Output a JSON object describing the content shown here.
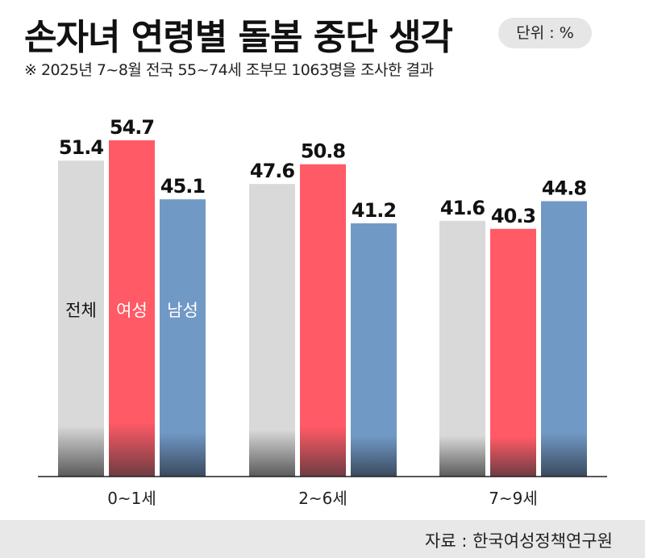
{
  "header": {
    "title": "손자녀 연령별 돌봄 중단 생각",
    "unit": "단위 : %",
    "subtitle": "※ 2025년 7~8월 전국 55~74세 조부모 1063명을 조사한 결과"
  },
  "footer": {
    "source": "자료 : 한국여성정책연구원"
  },
  "colors": {
    "total": "#d9d9d9",
    "female": "#ff5a66",
    "male": "#7199c6"
  },
  "chart_data": {
    "type": "bar",
    "categories": [
      "0~1세",
      "2~6세",
      "7~9세"
    ],
    "series": [
      {
        "name": "전체",
        "values": [
          51.4,
          47.6,
          41.6
        ]
      },
      {
        "name": "여성",
        "values": [
          54.7,
          50.8,
          40.3
        ]
      },
      {
        "name": "남성",
        "values": [
          45.1,
          41.2,
          44.8
        ]
      }
    ],
    "title": "손자녀 연령별 돌봄 중단 생각",
    "xlabel": "",
    "ylabel": "",
    "ylim": [
      0,
      62
    ],
    "grid": false,
    "legend": "inside-first-group"
  }
}
